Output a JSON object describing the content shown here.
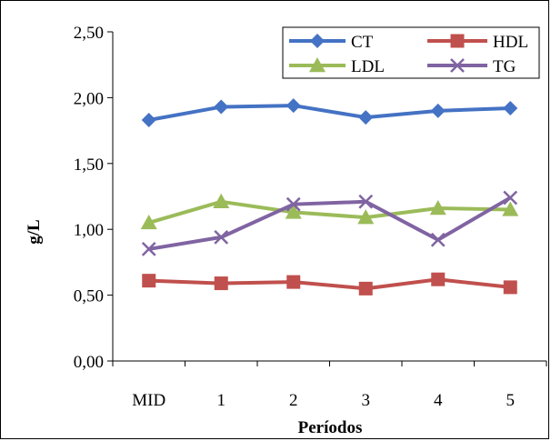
{
  "chart_data": {
    "type": "line",
    "title": "",
    "xlabel": "Períodos",
    "ylabel": "g/L",
    "ylim": [
      0,
      2.5
    ],
    "yticks": [
      "0,00",
      "0,50",
      "1,00",
      "1,50",
      "2,00",
      "2,50"
    ],
    "ytick_values": [
      0,
      0.5,
      1.0,
      1.5,
      2.0,
      2.5
    ],
    "categories": [
      "MID",
      "1",
      "2",
      "3",
      "4",
      "5"
    ],
    "grid": false,
    "legend_position": "top-right",
    "series": [
      {
        "name": "CT",
        "color": "#4472C4",
        "marker": "diamond",
        "values": [
          1.83,
          1.93,
          1.94,
          1.85,
          1.9,
          1.92
        ]
      },
      {
        "name": "HDL",
        "color": "#C0504D",
        "marker": "square",
        "values": [
          0.61,
          0.59,
          0.6,
          0.55,
          0.62,
          0.56
        ]
      },
      {
        "name": "LDL",
        "color": "#9BBB59",
        "marker": "triangle",
        "values": [
          1.05,
          1.21,
          1.13,
          1.09,
          1.16,
          1.15
        ]
      },
      {
        "name": "TG",
        "color": "#8064A2",
        "marker": "x",
        "values": [
          0.85,
          0.94,
          1.19,
          1.21,
          0.92,
          1.24
        ]
      }
    ]
  }
}
